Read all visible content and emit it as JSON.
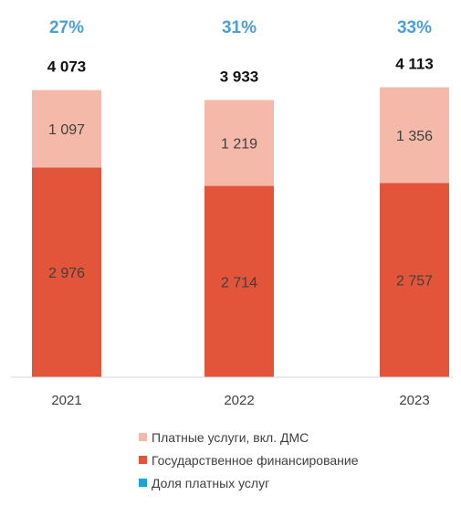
{
  "chart_data": {
    "type": "bar",
    "stacked": true,
    "categories": [
      "2021",
      "2022",
      "2023"
    ],
    "series": [
      {
        "name": "Государственное финансирование",
        "values": [
          2976,
          2714,
          2757
        ],
        "color": "#e2553a"
      },
      {
        "name": "Платные услуги, вкл. ДМС",
        "values": [
          1097,
          1219,
          1356
        ],
        "color": "#f5b9aa"
      }
    ],
    "totals": [
      4073,
      3933,
      4113
    ],
    "totals_labels": [
      "4 073",
      "3 933",
      "4 113"
    ],
    "share_series": {
      "name": "Доля платных услуг",
      "values": [
        27,
        31,
        33
      ],
      "labels": [
        "27%",
        "31%",
        "33%"
      ],
      "color": "#19a3d8"
    },
    "value_labels": {
      "Государственное финансирование": [
        "2 976",
        "2 714",
        "2 757"
      ],
      "Платные услуги, вкл. ДМС": [
        "1 097",
        "1 219",
        "1 356"
      ]
    },
    "ylim": [
      0,
      4600
    ],
    "grid": false,
    "legend_position": "bottom",
    "share_label_color": "#4a9fd8",
    "totals_color": "#111111",
    "value_label_color": "#404040",
    "axis_color": "#d9d9d9"
  },
  "legend": {
    "items": [
      {
        "label": "Платные услуги, вкл. ДМС",
        "color": "#f5b9aa"
      },
      {
        "label": "Государственное финансирование",
        "color": "#e2553a"
      },
      {
        "label": "Доля платных услуг",
        "color": "#19a3d8"
      }
    ]
  }
}
